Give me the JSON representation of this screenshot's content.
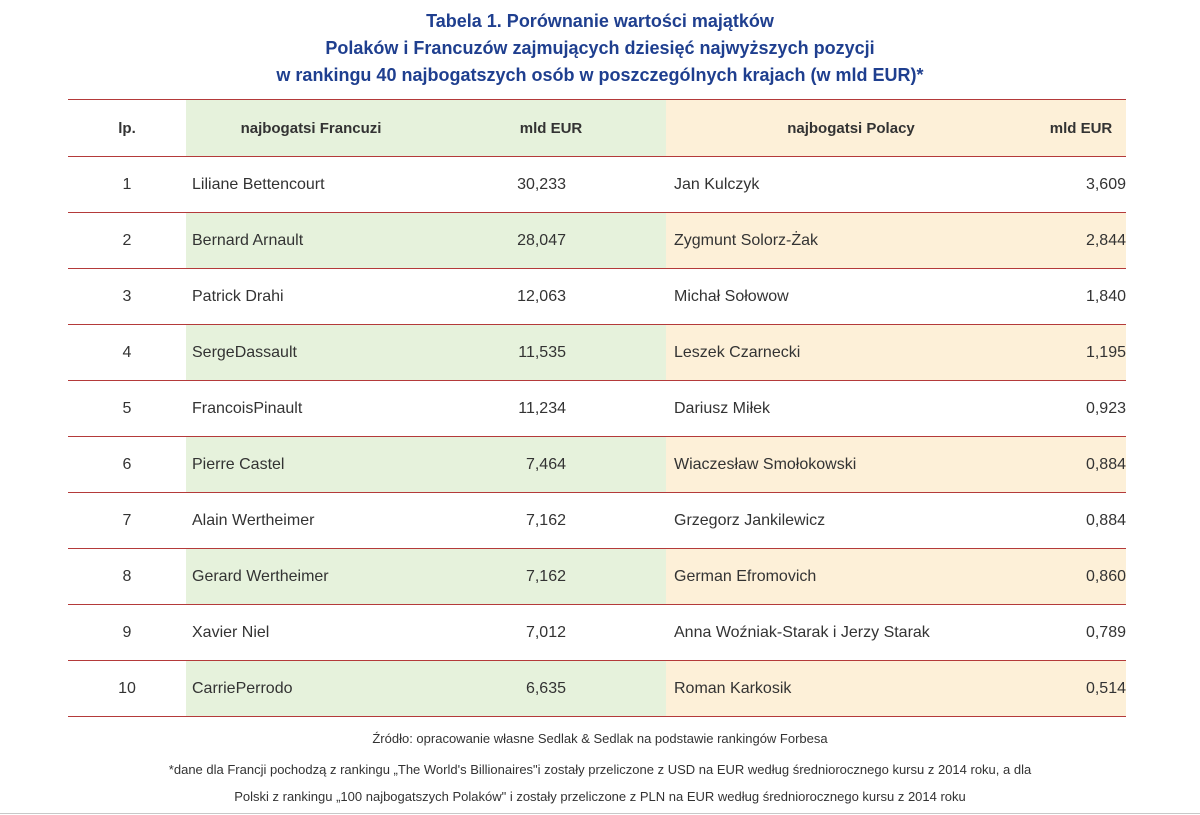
{
  "title": {
    "line1": "Tabela 1. Porównanie wartości majątków",
    "line2": "Polaków i Francuzów zajmujących dziesięć najwyższych pozycji",
    "line3": "w rankingu 40 najbogatszych osób w poszczególnych krajach (w mld EUR)*"
  },
  "colors": {
    "title": "#1f3f8f",
    "rule": "#b43a3a",
    "green_band": "#e6f2dc",
    "peach_band": "#fdf0d8"
  },
  "table": {
    "headers": {
      "lp": "lp.",
      "french": "najbogatsi Francuzi",
      "french_value": "mld EUR",
      "polish": "najbogatsi Polacy",
      "polish_value": "mld EUR"
    },
    "rows": [
      {
        "lp": "1",
        "french": "Liliane Bettencourt",
        "french_value": "30,233",
        "polish": "Jan Kulczyk",
        "polish_value": "3,609"
      },
      {
        "lp": "2",
        "french": "Bernard Arnault",
        "french_value": "28,047",
        "polish": "Zygmunt Solorz-Żak",
        "polish_value": "2,844"
      },
      {
        "lp": "3",
        "french": "Patrick Drahi",
        "french_value": "12,063",
        "polish": "Michał Sołowow",
        "polish_value": "1,840"
      },
      {
        "lp": "4",
        "french": "SergeDassault",
        "french_value": "11,535",
        "polish": "Leszek Czarnecki",
        "polish_value": "1,195"
      },
      {
        "lp": "5",
        "french": "FrancoisPinault",
        "french_value": "11,234",
        "polish": "Dariusz Miłek",
        "polish_value": "0,923"
      },
      {
        "lp": "6",
        "french": "Pierre Castel",
        "french_value": "7,464",
        "polish": "Wiaczesław Smołokowski",
        "polish_value": "0,884"
      },
      {
        "lp": "7",
        "french": "Alain Wertheimer",
        "french_value": "7,162",
        "polish": "Grzegorz Jankilewicz",
        "polish_value": "0,884"
      },
      {
        "lp": "8",
        "french": "Gerard Wertheimer",
        "french_value": "7,162",
        "polish": "German Efromovich",
        "polish_value": "0,860"
      },
      {
        "lp": "9",
        "french": "Xavier Niel",
        "french_value": "7,012",
        "polish": "Anna Woźniak-Starak i Jerzy Starak",
        "polish_value": "0,789"
      },
      {
        "lp": "10",
        "french": "CarriePerrodo",
        "french_value": "6,635",
        "polish": "Roman Karkosik",
        "polish_value": "0,514"
      }
    ]
  },
  "footer": {
    "source": "Źródło: opracowanie własne Sedlak & Sedlak na podstawie rankingów Forbesa",
    "note_line1": "*dane dla Francji pochodzą z rankingu „The World's Billionaires\"i zostały przeliczone z USD na EUR według średniorocznego kursu z 2014 roku, a dla",
    "note_line2": "Polski z rankingu „100 najbogatszych Polaków\" i zostały przeliczone z PLN na EUR według średniorocznego kursu z 2014 roku"
  }
}
